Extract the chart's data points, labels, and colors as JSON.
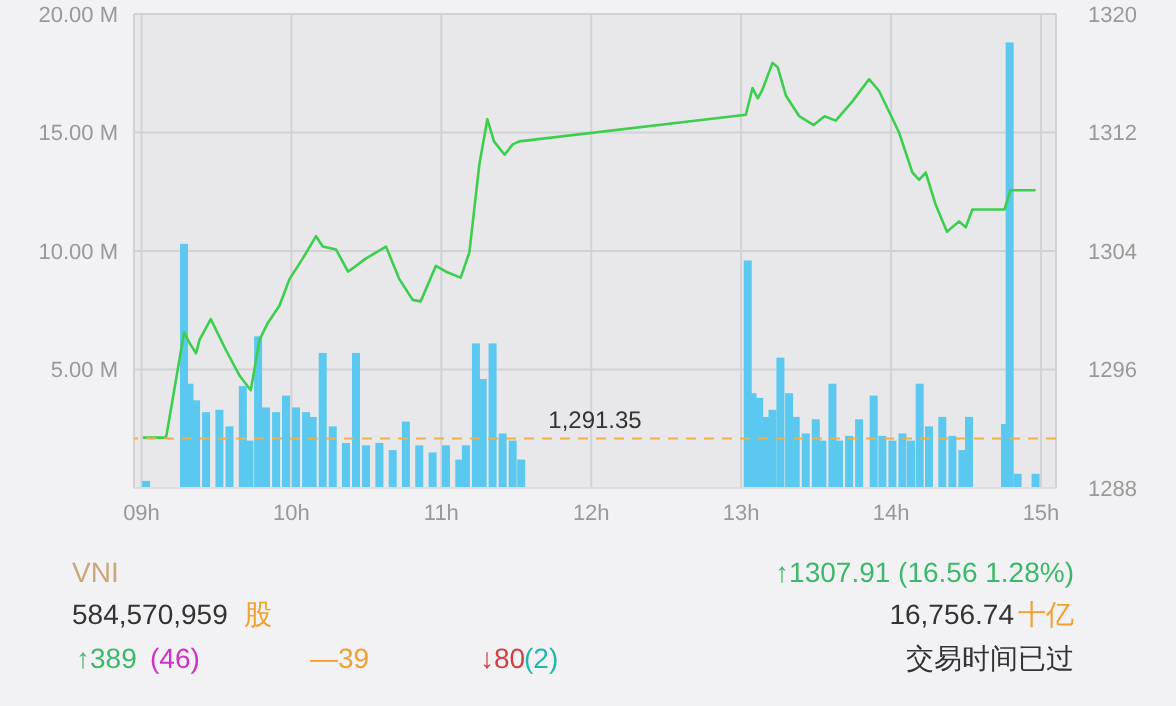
{
  "chart_data": {
    "type": "bar",
    "series": [
      {
        "axis": "y",
        "color": "#5bc8ef",
        "x": [
          9.031,
          9.284,
          9.32,
          9.364,
          9.431,
          9.52,
          9.587,
          9.676,
          9.72,
          9.778,
          9.831,
          9.898,
          9.964,
          10.031,
          10.098,
          10.142,
          10.209,
          10.276,
          10.364,
          10.431,
          10.498,
          10.587,
          10.676,
          10.764,
          10.853,
          10.942,
          11.031,
          11.12,
          11.164,
          11.231,
          11.276,
          11.342,
          11.409,
          11.476,
          11.533,
          13.044,
          13.076,
          13.12,
          13.164,
          13.209,
          13.262,
          13.32,
          13.364,
          13.431,
          13.498,
          13.542,
          13.609,
          13.653,
          13.72,
          13.787,
          13.884,
          13.942,
          14.009,
          14.076,
          14.133,
          14.191,
          14.253,
          14.342,
          14.409,
          14.476,
          14.52,
          14.76,
          14.791,
          14.844,
          14.964
        ],
        "values": [
          0.3,
          10.3,
          4.4,
          3.7,
          3.2,
          3.3,
          2.6,
          4.3,
          2.0,
          6.4,
          3.4,
          3.2,
          3.9,
          3.4,
          3.2,
          3.0,
          5.7,
          2.6,
          1.9,
          5.7,
          1.8,
          1.9,
          1.6,
          2.8,
          1.8,
          1.5,
          1.8,
          1.2,
          1.8,
          6.1,
          4.6,
          6.1,
          2.3,
          2.0,
          1.2,
          9.6,
          4.0,
          3.8,
          3.0,
          3.3,
          5.5,
          4.0,
          3.0,
          2.3,
          2.9,
          2.0,
          4.4,
          2.0,
          2.2,
          2.9,
          3.9,
          2.2,
          2.0,
          2.3,
          2.0,
          4.4,
          2.6,
          3.0,
          2.2,
          1.6,
          3.0,
          2.7,
          18.8,
          0.6,
          0.6
        ]
      },
      {
        "type": "line",
        "axis": "y2",
        "color": "#3ccf4e",
        "x": [
          9.009,
          9.164,
          9.284,
          9.32,
          9.364,
          9.387,
          9.462,
          9.564,
          9.653,
          9.729,
          9.787,
          9.84,
          9.92,
          9.987,
          10.076,
          10.164,
          10.209,
          10.298,
          10.378,
          10.498,
          10.631,
          10.72,
          10.809,
          10.862,
          10.964,
          11.031,
          11.129,
          11.187,
          11.253,
          11.307,
          11.351,
          11.422,
          11.476,
          11.52,
          13.031,
          13.076,
          13.111,
          13.142,
          13.209,
          13.244,
          13.298,
          13.387,
          13.484,
          13.556,
          13.631,
          13.742,
          13.853,
          13.92,
          13.987,
          14.053,
          14.142,
          14.187,
          14.231,
          14.298,
          14.373,
          14.453,
          14.498,
          14.542,
          14.756,
          14.796,
          14.964
        ],
        "values": [
          1291.4,
          1291.4,
          1298.5,
          1297.8,
          1297.1,
          1298.0,
          1299.4,
          1297.3,
          1295.6,
          1294.6,
          1298.0,
          1299.1,
          1300.3,
          1302.1,
          1303.5,
          1305.0,
          1304.3,
          1304.1,
          1302.6,
          1303.5,
          1304.3,
          1302.1,
          1300.7,
          1300.6,
          1303.0,
          1302.6,
          1302.2,
          1303.9,
          1309.8,
          1312.9,
          1311.4,
          1310.5,
          1311.2,
          1311.4,
          1313.2,
          1315.0,
          1314.3,
          1314.9,
          1316.7,
          1316.4,
          1314.5,
          1313.1,
          1312.5,
          1313.1,
          1312.8,
          1314.1,
          1315.6,
          1314.8,
          1313.4,
          1312.0,
          1309.3,
          1308.8,
          1309.3,
          1307.1,
          1305.3,
          1306.0,
          1305.6,
          1306.8,
          1306.8,
          1308.1,
          1308.1
        ]
      }
    ],
    "xlim": [
      8.95,
      15.1
    ],
    "xticks": [
      {
        "value": 9,
        "label": "09h"
      },
      {
        "value": 10,
        "label": "10h"
      },
      {
        "value": 11,
        "label": "11h"
      },
      {
        "value": 12,
        "label": "12h"
      },
      {
        "value": 13,
        "label": "13h"
      },
      {
        "value": 14,
        "label": "14h"
      },
      {
        "value": 15,
        "label": "15h"
      }
    ],
    "ylim": [
      0,
      20
    ],
    "yticks": [
      {
        "value": 0,
        "label": null
      },
      {
        "value": 5,
        "label": "5.00 M"
      },
      {
        "value": 10,
        "label": "10.00 M"
      },
      {
        "value": 15,
        "label": "15.00 M"
      },
      {
        "value": 20,
        "label": "20.00 M"
      }
    ],
    "y2lim": [
      1288,
      1320
    ],
    "y2ticks": [
      1288,
      1296,
      1304,
      1312,
      1320
    ],
    "ref_lines": [
      {
        "axis": "y2",
        "value": 1291.35,
        "label": "1,291.35",
        "color": "#f0b04a",
        "line_style": "dashed"
      }
    ],
    "grid": true,
    "annotations": [
      "VNI",
      "584,570,959",
      "股",
      "↑1307.91 (16.56 1.28%)",
      "16,756.74",
      "十亿",
      "↑389",
      "(46)",
      "—39",
      "↓80",
      "(2)",
      "交易时间已过"
    ]
  }
}
